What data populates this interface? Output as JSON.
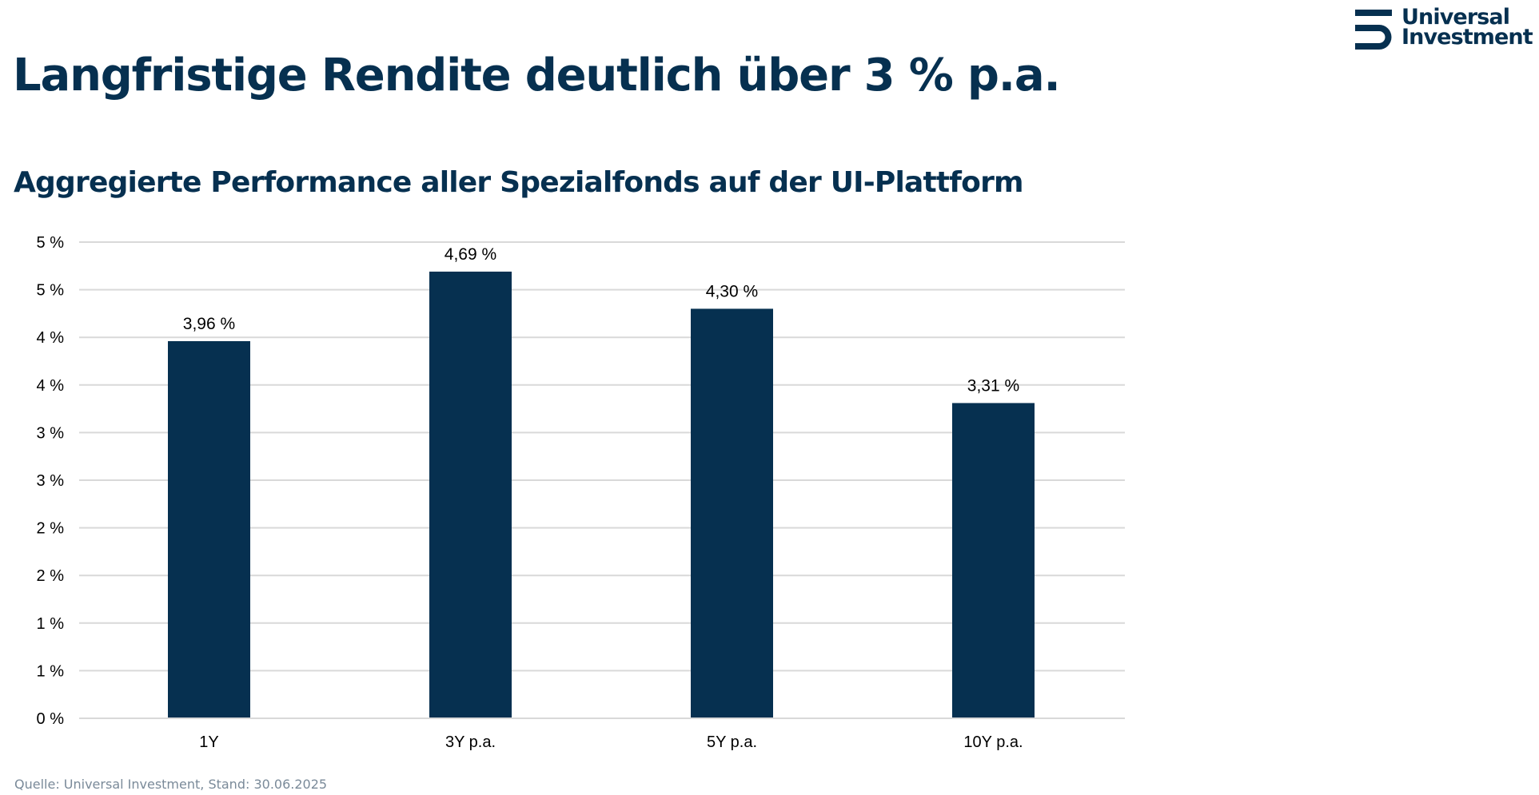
{
  "header": {
    "title": "Langfristige Rendite deutlich über 3 % p.a.",
    "subtitle": "Aggregierte Performance aller Spezialfonds auf der UI-Plattform"
  },
  "logo": {
    "icon": "universal-investment-logo-icon",
    "line1": "Universal",
    "line2": "Investment"
  },
  "colors": {
    "brand": "#063050",
    "bar": "#063050",
    "gridline": "#d9d9d9",
    "axis_text": "#000000",
    "source_text": "#7a8a99"
  },
  "footer": {
    "source": "Quelle: Universal Investment, Stand: 30.06.2025"
  },
  "chart_data": {
    "type": "bar",
    "title": "Aggregierte Performance aller Spezialfonds auf der UI-Plattform",
    "xlabel": "",
    "ylabel": "",
    "categories": [
      "1Y",
      "3Y p.a.",
      "5Y p.a.",
      "10Y p.a."
    ],
    "values": [
      3.96,
      4.69,
      4.3,
      3.31
    ],
    "data_labels": [
      "3,96 %",
      "4,69 %",
      "4,30 %",
      "3,31 %"
    ],
    "ylim": [
      0,
      5
    ],
    "yticks": [
      0,
      0.5,
      1,
      1.5,
      2,
      2.5,
      3,
      3.5,
      4,
      4.5,
      5
    ],
    "ytick_labels": [
      "0 %",
      "1 %",
      "1 %",
      "2 %",
      "2 %",
      "3 %",
      "3 %",
      "4 %",
      "4 %",
      "5 %",
      "5 %"
    ],
    "grid": true,
    "legend": "none"
  }
}
